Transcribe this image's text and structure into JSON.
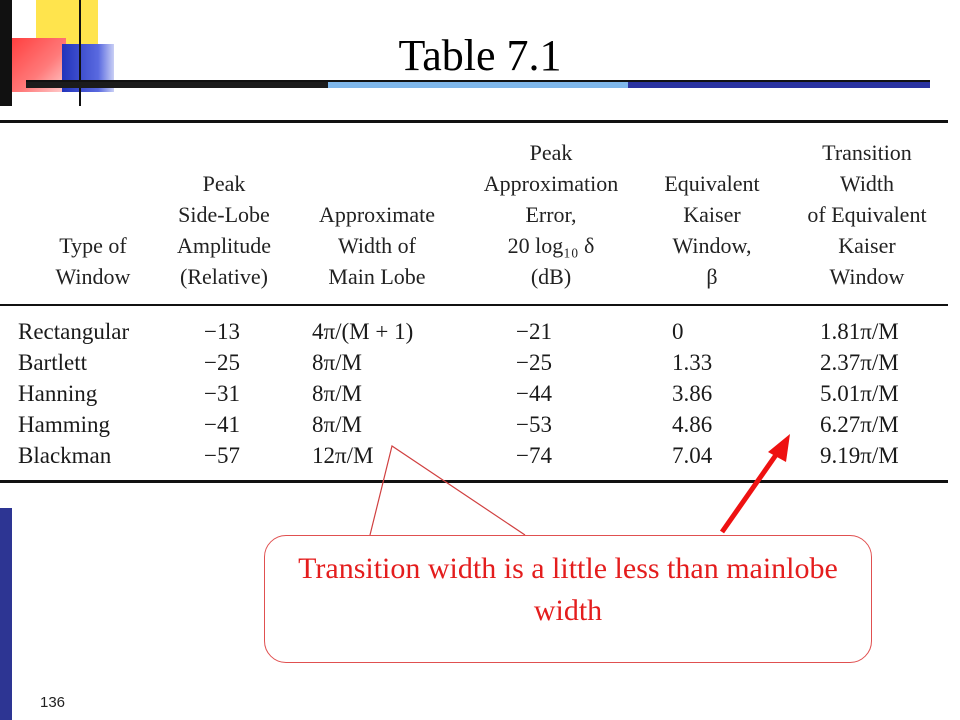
{
  "slide": {
    "title": "Table 7.1",
    "page_number": "136"
  },
  "table": {
    "headers": [
      "Type of\nWindow",
      "Peak\nSide-Lobe\nAmplitude\n(Relative)",
      "Approximate\nWidth of\nMain Lobe",
      "Peak\nApproximation\nError,\n20 log₁₀ δ\n(dB)",
      "Equivalent\nKaiser\nWindow,\nβ",
      "Transition\nWidth\nof Equivalent\nKaiser\nWindow"
    ],
    "rows": [
      [
        "Rectangular",
        "−13",
        "4π/(M + 1)",
        "−21",
        "0",
        "1.81π/M"
      ],
      [
        "Bartlett",
        "−25",
        "8π/M",
        "−25",
        "1.33",
        "2.37π/M"
      ],
      [
        "Hanning",
        "−31",
        "8π/M",
        "−44",
        "3.86",
        "5.01π/M"
      ],
      [
        "Hamming",
        "−41",
        "8π/M",
        "−53",
        "4.86",
        "6.27π/M"
      ],
      [
        "Blackman",
        "−57",
        "12π/M",
        "−74",
        "7.04",
        "9.19π/M"
      ]
    ]
  },
  "callout": {
    "text": "Transition width is a little less than mainlobe width",
    "color": "#e41d1d"
  }
}
